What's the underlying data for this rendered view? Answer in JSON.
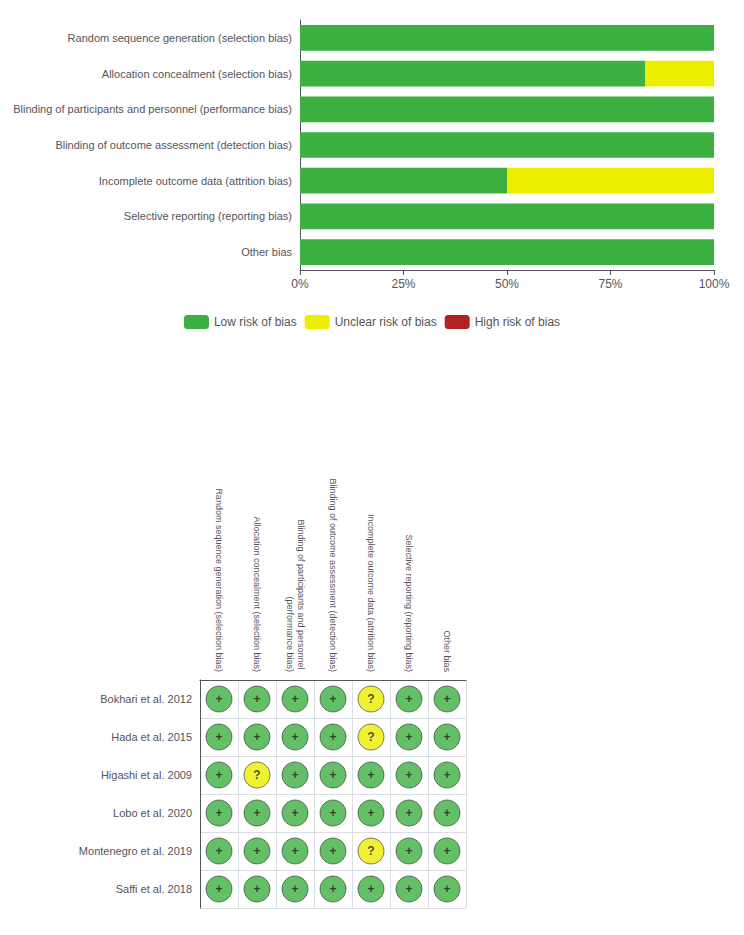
{
  "chart_data": [
    {
      "type": "bar",
      "orientation": "horizontal",
      "stacked": true,
      "categories": [
        "Random sequence generation (selection bias)",
        "Allocation concealment (selection bias)",
        "Blinding of participants and personnel (performance bias)",
        "Blinding of outcome assessment (detection bias)",
        "Incomplete outcome data (attrition bias)",
        "Selective reporting (reporting bias)",
        "Other bias"
      ],
      "series": [
        {
          "name": "Low risk of bias",
          "color": "#3cb040",
          "values": [
            100,
            83.33,
            100,
            100,
            50,
            100,
            100
          ]
        },
        {
          "name": "Unclear risk of bias",
          "color": "#eded00",
          "values": [
            0,
            16.67,
            0,
            0,
            50,
            0,
            0
          ]
        },
        {
          "name": "High risk of bias",
          "color": "#b22222",
          "values": [
            0,
            0,
            0,
            0,
            0,
            0,
            0
          ]
        }
      ],
      "xlim": [
        0,
        100
      ],
      "xticks": [
        {
          "value": 0,
          "label": "0%"
        },
        {
          "value": 25,
          "label": "25%"
        },
        {
          "value": 50,
          "label": "50%"
        },
        {
          "value": 75,
          "label": "75%"
        },
        {
          "value": 100,
          "label": "100%"
        }
      ],
      "grid": false,
      "legend": "bottom"
    },
    {
      "type": "matrix",
      "x_categories": [
        "Random sequence generation (selection bias)",
        "Allocation concealment (selection bias)",
        "Blinding of participants and personnel (performance bias)",
        "Blinding of outcome assessment (detection bias)",
        "Incomplete outcome data (attrition bias)",
        "Selective reporting (reporting bias)",
        "Other bias"
      ],
      "y_categories": [
        "Bokhari et al. 2012",
        "Hada et al. 2015",
        "Higashi et al. 2009",
        "Lobo et al. 2020",
        "Montenegro et al. 2019",
        "Saffi et al. 2018"
      ],
      "cells": [
        [
          "+",
          "+",
          "+",
          "+",
          "?",
          "+",
          "+"
        ],
        [
          "+",
          "+",
          "+",
          "+",
          "?",
          "+",
          "+"
        ],
        [
          "+",
          "?",
          "+",
          "+",
          "+",
          "+",
          "+"
        ],
        [
          "+",
          "+",
          "+",
          "+",
          "+",
          "+",
          "+"
        ],
        [
          "+",
          "+",
          "+",
          "+",
          "?",
          "+",
          "+"
        ],
        [
          "+",
          "+",
          "+",
          "+",
          "+",
          "+",
          "+"
        ]
      ],
      "colors": [
        [
          "#3cb040",
          "#3cb040",
          "#3cb040",
          "#3cb040",
          "#eded00",
          "#3cb040",
          "#3cb040"
        ],
        [
          "#3cb040",
          "#3cb040",
          "#3cb040",
          "#3cb040",
          "#eded00",
          "#3cb040",
          "#3cb040"
        ],
        [
          "#3cb040",
          "#eded00",
          "#3cb040",
          "#3cb040",
          "#3cb040",
          "#3cb040",
          "#3cb040"
        ],
        [
          "#3cb040",
          "#3cb040",
          "#3cb040",
          "#3cb040",
          "#3cb040",
          "#3cb040",
          "#3cb040"
        ],
        [
          "#3cb040",
          "#3cb040",
          "#3cb040",
          "#3cb040",
          "#eded00",
          "#3cb040",
          "#3cb040"
        ],
        [
          "#3cb040",
          "#3cb040",
          "#3cb040",
          "#3cb040",
          "#3cb040",
          "#3cb040",
          "#3cb040"
        ]
      ],
      "grid": true
    }
  ]
}
